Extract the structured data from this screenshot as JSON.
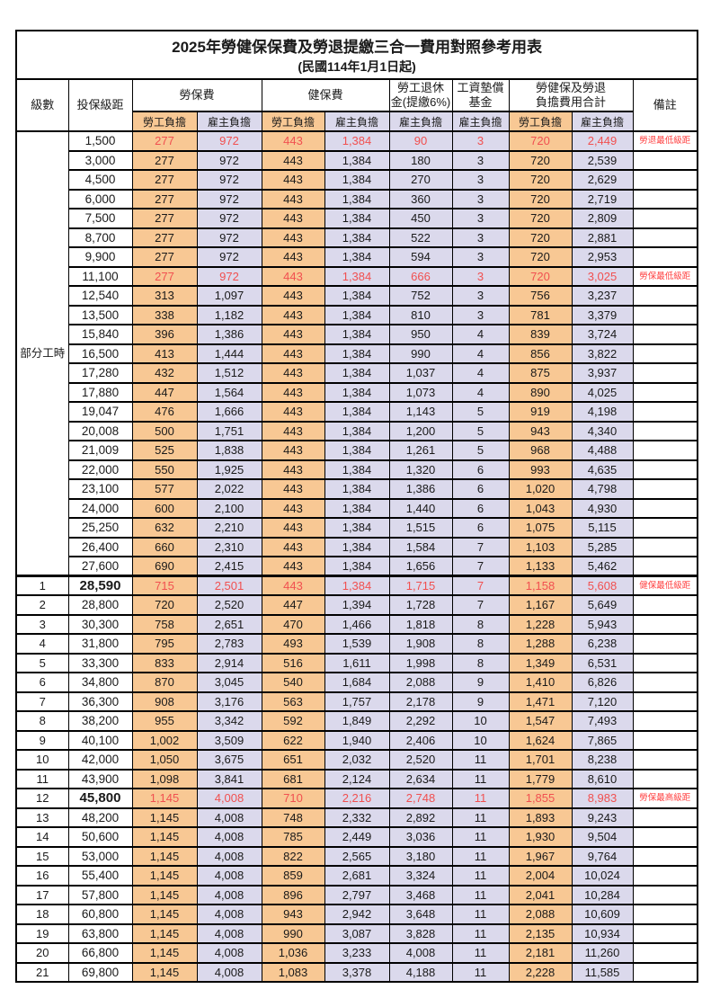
{
  "page": {
    "title": "2025年勞健保保費及勞退提繳三合一費用對照參考用表",
    "subtitle": "(民國114年1月1日起)"
  },
  "colors": {
    "employee_column_orange": "#F8C894",
    "employer_column_lavender": "#DBD9EC",
    "highlight_red": "#F15050",
    "remark_red": "#FF4040",
    "grid_black": "#000000"
  },
  "table": {
    "header": {
      "level": "級數",
      "bracket": "投保級距",
      "labor": "勞保費",
      "health": "健保費",
      "pension_line1": "勞工退休",
      "pension_line2": "金(提繳6%)",
      "fund_line1": "工資墊償",
      "fund_line2": "基金",
      "total_line1": "勞健保及勞退",
      "total_line2": "負擔費用合計",
      "remark": "備註",
      "sub": [
        "勞工負擔",
        "雇主負擔",
        "勞工負擔",
        "雇主負擔",
        "雇主負擔",
        "雇主負擔",
        "勞工負擔",
        "雇主負擔"
      ]
    },
    "part_time_label": "部分工時",
    "part_time_rowspan": 23,
    "value_col_names": [
      "labor-employee",
      "labor-employer",
      "health-employee",
      "health-employer",
      "pension-employer",
      "wage-fund-employer",
      "total-employee",
      "total-employer"
    ],
    "value_col_types": [
      "emp",
      "er",
      "emp",
      "er",
      "er",
      "er",
      "emp",
      "er"
    ],
    "rows": [
      {
        "level": "",
        "bracket": "1,500",
        "values": [
          "277",
          "972",
          "443",
          "1,384",
          "90",
          "3",
          "720",
          "2,449"
        ],
        "remark": "勞退最低級距",
        "highlight": true,
        "bold": false
      },
      {
        "level": "",
        "bracket": "3,000",
        "values": [
          "277",
          "972",
          "443",
          "1,384",
          "180",
          "3",
          "720",
          "2,539"
        ],
        "remark": "",
        "highlight": false,
        "bold": false
      },
      {
        "level": "",
        "bracket": "4,500",
        "values": [
          "277",
          "972",
          "443",
          "1,384",
          "270",
          "3",
          "720",
          "2,629"
        ],
        "remark": "",
        "highlight": false,
        "bold": false
      },
      {
        "level": "",
        "bracket": "6,000",
        "values": [
          "277",
          "972",
          "443",
          "1,384",
          "360",
          "3",
          "720",
          "2,719"
        ],
        "remark": "",
        "highlight": false,
        "bold": false
      },
      {
        "level": "",
        "bracket": "7,500",
        "values": [
          "277",
          "972",
          "443",
          "1,384",
          "450",
          "3",
          "720",
          "2,809"
        ],
        "remark": "",
        "highlight": false,
        "bold": false
      },
      {
        "level": "",
        "bracket": "8,700",
        "values": [
          "277",
          "972",
          "443",
          "1,384",
          "522",
          "3",
          "720",
          "2,881"
        ],
        "remark": "",
        "highlight": false,
        "bold": false
      },
      {
        "level": "",
        "bracket": "9,900",
        "values": [
          "277",
          "972",
          "443",
          "1,384",
          "594",
          "3",
          "720",
          "2,953"
        ],
        "remark": "",
        "highlight": false,
        "bold": false
      },
      {
        "level": "",
        "bracket": "11,100",
        "values": [
          "277",
          "972",
          "443",
          "1,384",
          "666",
          "3",
          "720",
          "3,025"
        ],
        "remark": "勞保最低級距",
        "highlight": true,
        "bold": false
      },
      {
        "level": "",
        "bracket": "12,540",
        "values": [
          "313",
          "1,097",
          "443",
          "1,384",
          "752",
          "3",
          "756",
          "3,237"
        ],
        "remark": "",
        "highlight": false,
        "bold": false
      },
      {
        "level": "",
        "bracket": "13,500",
        "values": [
          "338",
          "1,182",
          "443",
          "1,384",
          "810",
          "3",
          "781",
          "3,379"
        ],
        "remark": "",
        "highlight": false,
        "bold": false
      },
      {
        "level": "",
        "bracket": "15,840",
        "values": [
          "396",
          "1,386",
          "443",
          "1,384",
          "950",
          "4",
          "839",
          "3,724"
        ],
        "remark": "",
        "highlight": false,
        "bold": false
      },
      {
        "level": "",
        "bracket": "16,500",
        "values": [
          "413",
          "1,444",
          "443",
          "1,384",
          "990",
          "4",
          "856",
          "3,822"
        ],
        "remark": "",
        "highlight": false,
        "bold": false
      },
      {
        "level": "",
        "bracket": "17,280",
        "values": [
          "432",
          "1,512",
          "443",
          "1,384",
          "1,037",
          "4",
          "875",
          "3,937"
        ],
        "remark": "",
        "highlight": false,
        "bold": false
      },
      {
        "level": "",
        "bracket": "17,880",
        "values": [
          "447",
          "1,564",
          "443",
          "1,384",
          "1,073",
          "4",
          "890",
          "4,025"
        ],
        "remark": "",
        "highlight": false,
        "bold": false
      },
      {
        "level": "",
        "bracket": "19,047",
        "values": [
          "476",
          "1,666",
          "443",
          "1,384",
          "1,143",
          "5",
          "919",
          "4,198"
        ],
        "remark": "",
        "highlight": false,
        "bold": false
      },
      {
        "level": "",
        "bracket": "20,008",
        "values": [
          "500",
          "1,751",
          "443",
          "1,384",
          "1,200",
          "5",
          "943",
          "4,340"
        ],
        "remark": "",
        "highlight": false,
        "bold": false
      },
      {
        "level": "",
        "bracket": "21,009",
        "values": [
          "525",
          "1,838",
          "443",
          "1,384",
          "1,261",
          "5",
          "968",
          "4,488"
        ],
        "remark": "",
        "highlight": false,
        "bold": false
      },
      {
        "level": "",
        "bracket": "22,000",
        "values": [
          "550",
          "1,925",
          "443",
          "1,384",
          "1,320",
          "6",
          "993",
          "4,635"
        ],
        "remark": "",
        "highlight": false,
        "bold": false
      },
      {
        "level": "",
        "bracket": "23,100",
        "values": [
          "577",
          "2,022",
          "443",
          "1,384",
          "1,386",
          "6",
          "1,020",
          "4,798"
        ],
        "remark": "",
        "highlight": false,
        "bold": false
      },
      {
        "level": "",
        "bracket": "24,000",
        "values": [
          "600",
          "2,100",
          "443",
          "1,384",
          "1,440",
          "6",
          "1,043",
          "4,930"
        ],
        "remark": "",
        "highlight": false,
        "bold": false
      },
      {
        "level": "",
        "bracket": "25,250",
        "values": [
          "632",
          "2,210",
          "443",
          "1,384",
          "1,515",
          "6",
          "1,075",
          "5,115"
        ],
        "remark": "",
        "highlight": false,
        "bold": false
      },
      {
        "level": "",
        "bracket": "26,400",
        "values": [
          "660",
          "2,310",
          "443",
          "1,384",
          "1,584",
          "7",
          "1,103",
          "5,285"
        ],
        "remark": "",
        "highlight": false,
        "bold": false
      },
      {
        "level": "",
        "bracket": "27,600",
        "values": [
          "690",
          "2,415",
          "443",
          "1,384",
          "1,656",
          "7",
          "1,133",
          "5,462"
        ],
        "remark": "",
        "highlight": false,
        "bold": false
      },
      {
        "level": "1",
        "bracket": "28,590",
        "values": [
          "715",
          "2,501",
          "443",
          "1,384",
          "1,715",
          "7",
          "1,158",
          "5,608"
        ],
        "remark": "健保最低級距",
        "highlight": true,
        "bold": true
      },
      {
        "level": "2",
        "bracket": "28,800",
        "values": [
          "720",
          "2,520",
          "447",
          "1,394",
          "1,728",
          "7",
          "1,167",
          "5,649"
        ],
        "remark": "",
        "highlight": false,
        "bold": false
      },
      {
        "level": "3",
        "bracket": "30,300",
        "values": [
          "758",
          "2,651",
          "470",
          "1,466",
          "1,818",
          "8",
          "1,228",
          "5,943"
        ],
        "remark": "",
        "highlight": false,
        "bold": false
      },
      {
        "level": "4",
        "bracket": "31,800",
        "values": [
          "795",
          "2,783",
          "493",
          "1,539",
          "1,908",
          "8",
          "1,288",
          "6,238"
        ],
        "remark": "",
        "highlight": false,
        "bold": false
      },
      {
        "level": "5",
        "bracket": "33,300",
        "values": [
          "833",
          "2,914",
          "516",
          "1,611",
          "1,998",
          "8",
          "1,349",
          "6,531"
        ],
        "remark": "",
        "highlight": false,
        "bold": false
      },
      {
        "level": "6",
        "bracket": "34,800",
        "values": [
          "870",
          "3,045",
          "540",
          "1,684",
          "2,088",
          "9",
          "1,410",
          "6,826"
        ],
        "remark": "",
        "highlight": false,
        "bold": false
      },
      {
        "level": "7",
        "bracket": "36,300",
        "values": [
          "908",
          "3,176",
          "563",
          "1,757",
          "2,178",
          "9",
          "1,471",
          "7,120"
        ],
        "remark": "",
        "highlight": false,
        "bold": false
      },
      {
        "level": "8",
        "bracket": "38,200",
        "values": [
          "955",
          "3,342",
          "592",
          "1,849",
          "2,292",
          "10",
          "1,547",
          "7,493"
        ],
        "remark": "",
        "highlight": false,
        "bold": false
      },
      {
        "level": "9",
        "bracket": "40,100",
        "values": [
          "1,002",
          "3,509",
          "622",
          "1,940",
          "2,406",
          "10",
          "1,624",
          "7,865"
        ],
        "remark": "",
        "highlight": false,
        "bold": false
      },
      {
        "level": "10",
        "bracket": "42,000",
        "values": [
          "1,050",
          "3,675",
          "651",
          "2,032",
          "2,520",
          "11",
          "1,701",
          "8,238"
        ],
        "remark": "",
        "highlight": false,
        "bold": false
      },
      {
        "level": "11",
        "bracket": "43,900",
        "values": [
          "1,098",
          "3,841",
          "681",
          "2,124",
          "2,634",
          "11",
          "1,779",
          "8,610"
        ],
        "remark": "",
        "highlight": false,
        "bold": false
      },
      {
        "level": "12",
        "bracket": "45,800",
        "values": [
          "1,145",
          "4,008",
          "710",
          "2,216",
          "2,748",
          "11",
          "1,855",
          "8,983"
        ],
        "remark": "勞保最高級距",
        "highlight": true,
        "bold": true
      },
      {
        "level": "13",
        "bracket": "48,200",
        "values": [
          "1,145",
          "4,008",
          "748",
          "2,332",
          "2,892",
          "11",
          "1,893",
          "9,243"
        ],
        "remark": "",
        "highlight": false,
        "bold": false
      },
      {
        "level": "14",
        "bracket": "50,600",
        "values": [
          "1,145",
          "4,008",
          "785",
          "2,449",
          "3,036",
          "11",
          "1,930",
          "9,504"
        ],
        "remark": "",
        "highlight": false,
        "bold": false
      },
      {
        "level": "15",
        "bracket": "53,000",
        "values": [
          "1,145",
          "4,008",
          "822",
          "2,565",
          "3,180",
          "11",
          "1,967",
          "9,764"
        ],
        "remark": "",
        "highlight": false,
        "bold": false
      },
      {
        "level": "16",
        "bracket": "55,400",
        "values": [
          "1,145",
          "4,008",
          "859",
          "2,681",
          "3,324",
          "11",
          "2,004",
          "10,024"
        ],
        "remark": "",
        "highlight": false,
        "bold": false
      },
      {
        "level": "17",
        "bracket": "57,800",
        "values": [
          "1,145",
          "4,008",
          "896",
          "2,797",
          "3,468",
          "11",
          "2,041",
          "10,284"
        ],
        "remark": "",
        "highlight": false,
        "bold": false
      },
      {
        "level": "18",
        "bracket": "60,800",
        "values": [
          "1,145",
          "4,008",
          "943",
          "2,942",
          "3,648",
          "11",
          "2,088",
          "10,609"
        ],
        "remark": "",
        "highlight": false,
        "bold": false
      },
      {
        "level": "19",
        "bracket": "63,800",
        "values": [
          "1,145",
          "4,008",
          "990",
          "3,087",
          "3,828",
          "11",
          "2,135",
          "10,934"
        ],
        "remark": "",
        "highlight": false,
        "bold": false
      },
      {
        "level": "20",
        "bracket": "66,800",
        "values": [
          "1,145",
          "4,008",
          "1,036",
          "3,233",
          "4,008",
          "11",
          "2,181",
          "11,260"
        ],
        "remark": "",
        "highlight": false,
        "bold": false
      },
      {
        "level": "21",
        "bracket": "69,800",
        "values": [
          "1,145",
          "4,008",
          "1,083",
          "3,378",
          "4,188",
          "11",
          "2,228",
          "11,585"
        ],
        "remark": "",
        "highlight": false,
        "bold": false
      }
    ]
  }
}
